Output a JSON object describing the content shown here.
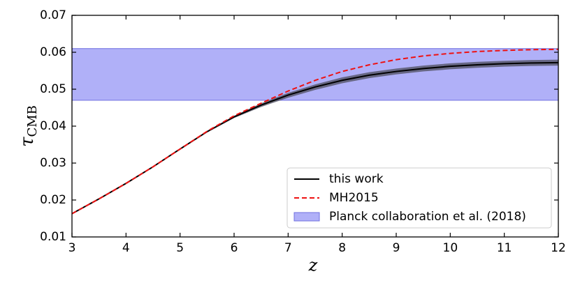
{
  "chart_data": {
    "type": "line",
    "xlabel": "z",
    "ylabel": {
      "symbol": "τ",
      "subscript": "CMB"
    },
    "x": [
      3,
      3.5,
      4,
      4.5,
      5,
      5.5,
      6,
      6.5,
      7,
      7.5,
      8,
      8.5,
      9,
      9.5,
      10,
      10.5,
      11,
      11.5,
      12
    ],
    "series": [
      {
        "name": "this work",
        "color": "#000000",
        "band_color": "#555566",
        "values": [
          0.0163,
          0.0203,
          0.0245,
          0.029,
          0.0338,
          0.0385,
          0.0425,
          0.0457,
          0.0484,
          0.0506,
          0.0524,
          0.0538,
          0.0548,
          0.0556,
          0.0562,
          0.0566,
          0.0569,
          0.0571,
          0.0572
        ],
        "lower": [
          0.0163,
          0.0203,
          0.0245,
          0.029,
          0.0337,
          0.0383,
          0.0422,
          0.0452,
          0.0477,
          0.0498,
          0.0516,
          0.053,
          0.054,
          0.0548,
          0.0554,
          0.0558,
          0.0561,
          0.0563,
          0.0564
        ],
        "upper": [
          0.0163,
          0.0203,
          0.0245,
          0.029,
          0.0339,
          0.0387,
          0.0428,
          0.0462,
          0.049,
          0.0513,
          0.0532,
          0.0546,
          0.0556,
          0.0564,
          0.057,
          0.0574,
          0.0577,
          0.0579,
          0.058
        ]
      },
      {
        "name": "MH2015",
        "color": "#ee1111",
        "dashed": true,
        "values": [
          0.0163,
          0.0203,
          0.0245,
          0.029,
          0.0338,
          0.0386,
          0.0428,
          0.0462,
          0.0495,
          0.0524,
          0.0548,
          0.0566,
          0.058,
          0.059,
          0.0597,
          0.0602,
          0.0605,
          0.0607,
          0.0608
        ]
      }
    ],
    "bands": [
      {
        "name": "Planck collaboration et al. (2018)",
        "color": "#b0b0f8",
        "edge": "#7070e0",
        "range": [
          0.047,
          0.061
        ]
      }
    ],
    "xlim": [
      3,
      12
    ],
    "xticks": [
      3,
      4,
      5,
      6,
      7,
      8,
      9,
      10,
      11,
      12
    ],
    "ylim": [
      0.01,
      0.07
    ],
    "yticks": [
      0.01,
      0.02,
      0.03,
      0.04,
      0.05,
      0.06,
      0.07
    ],
    "legend": "lower right"
  }
}
